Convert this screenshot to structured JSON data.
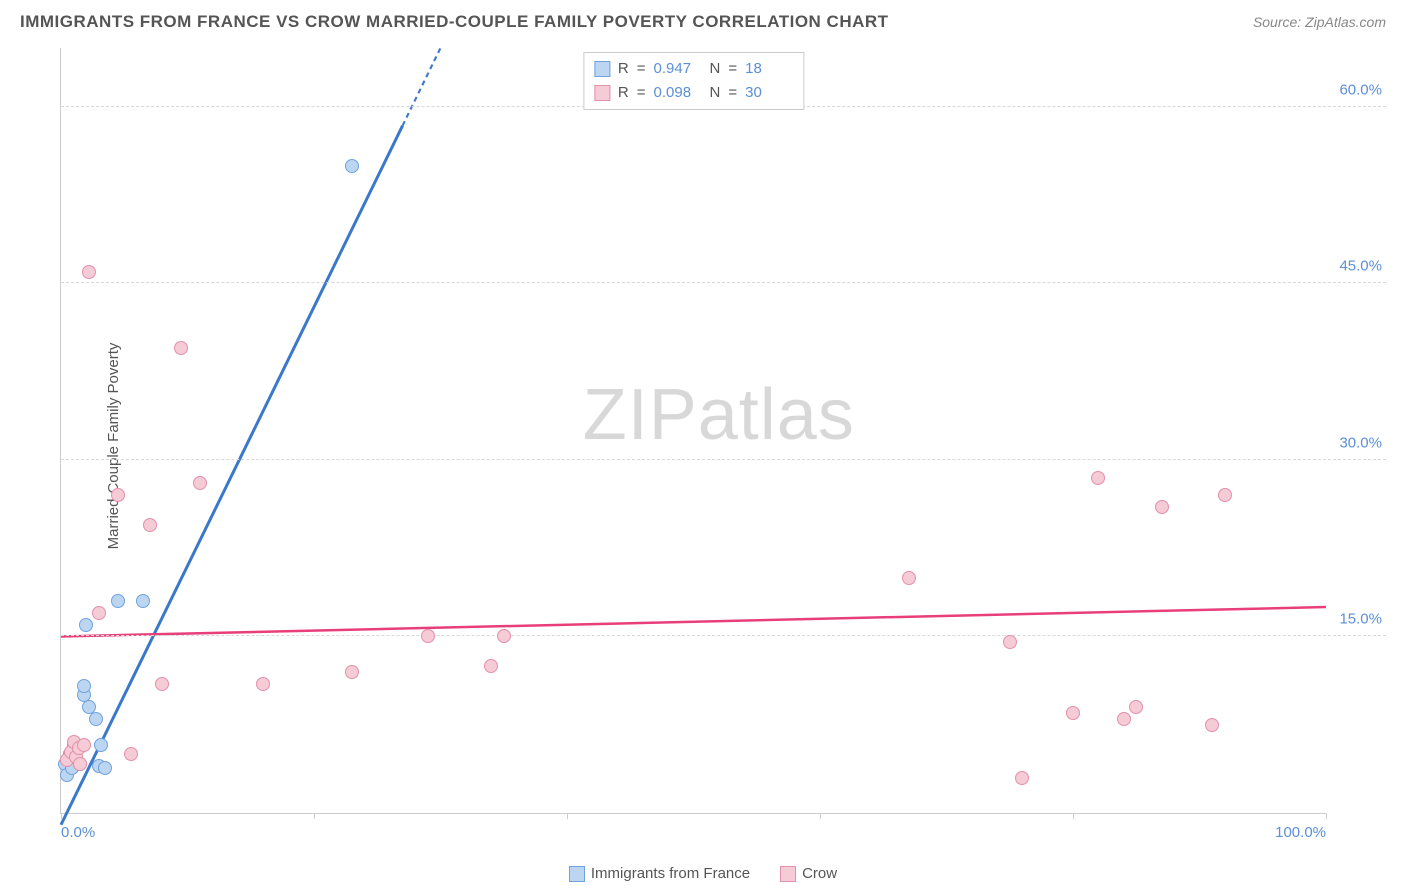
{
  "header": {
    "title": "IMMIGRANTS FROM FRANCE VS CROW MARRIED-COUPLE FAMILY POVERTY CORRELATION CHART",
    "source_prefix": "Source: ",
    "source": "ZipAtlas.com"
  },
  "watermark": {
    "bold": "ZIP",
    "light": "atlas"
  },
  "chart": {
    "type": "scatter",
    "ylabel": "Married-Couple Family Poverty",
    "xlim": [
      0,
      100
    ],
    "ylim": [
      0,
      65
    ],
    "xticks": [
      0,
      20,
      40,
      60,
      80,
      100
    ],
    "xtick_labels": {
      "0": "0.0%",
      "100": "100.0%"
    },
    "yticks": [
      15,
      30,
      45,
      60
    ],
    "ytick_labels": {
      "15": "15.0%",
      "30": "30.0%",
      "45": "45.0%",
      "60": "60.0%"
    },
    "grid_color": "#d8d8d8",
    "axis_color": "#cccccc",
    "tick_label_color": "#5b8fd6",
    "background_color": "#ffffff",
    "marker_radius": 7,
    "series": [
      {
        "name": "Immigrants from France",
        "fill": "#bcd5f0",
        "stroke": "#6fa3df",
        "line_color": "#3a78c9",
        "line_width": 3,
        "regression": {
          "x1": 0,
          "y1": -1,
          "x2": 30,
          "y2": 65,
          "dash_after_x": 27
        },
        "R_label": "R",
        "R": "0.947",
        "N_label": "N",
        "N": "18",
        "points": [
          [
            0.3,
            4.2
          ],
          [
            0.5,
            3.2
          ],
          [
            0.7,
            5.0
          ],
          [
            0.9,
            3.8
          ],
          [
            1.0,
            4.8
          ],
          [
            1.0,
            5.8
          ],
          [
            1.5,
            4.2
          ],
          [
            1.8,
            10.0
          ],
          [
            1.8,
            10.8
          ],
          [
            2.0,
            16.0
          ],
          [
            2.2,
            9.0
          ],
          [
            2.8,
            8.0
          ],
          [
            3.0,
            4.0
          ],
          [
            3.2,
            5.8
          ],
          [
            3.5,
            3.8
          ],
          [
            4.5,
            18.0
          ],
          [
            6.5,
            18.0
          ],
          [
            23.0,
            55.0
          ]
        ]
      },
      {
        "name": "Crow",
        "fill": "#f5cbd6",
        "stroke": "#e48fab",
        "line_color": "#e83e7a",
        "line_width": 2.5,
        "regression": {
          "x1": 0,
          "y1": 15.0,
          "x2": 100,
          "y2": 17.5
        },
        "R_label": "R",
        "R": "0.098",
        "N_label": "N",
        "N": "30",
        "points": [
          [
            0.5,
            4.5
          ],
          [
            0.8,
            5.2
          ],
          [
            1.0,
            6.0
          ],
          [
            1.2,
            4.8
          ],
          [
            1.4,
            5.5
          ],
          [
            1.5,
            4.2
          ],
          [
            1.8,
            5.8
          ],
          [
            2.2,
            46.0
          ],
          [
            3.0,
            17.0
          ],
          [
            4.5,
            27.0
          ],
          [
            5.5,
            5.0
          ],
          [
            7.0,
            24.5
          ],
          [
            8.0,
            11.0
          ],
          [
            9.5,
            39.5
          ],
          [
            11.0,
            28.0
          ],
          [
            16.0,
            11.0
          ],
          [
            23.0,
            12.0
          ],
          [
            29.0,
            15.0
          ],
          [
            34.0,
            12.5
          ],
          [
            35.0,
            15.0
          ],
          [
            67.0,
            20.0
          ],
          [
            75.0,
            14.5
          ],
          [
            76.0,
            3.0
          ],
          [
            80.0,
            8.5
          ],
          [
            82.0,
            28.5
          ],
          [
            84.0,
            8.0
          ],
          [
            85.0,
            9.0
          ],
          [
            87.0,
            26.0
          ],
          [
            91.0,
            7.5
          ],
          [
            92.0,
            27.0
          ]
        ]
      }
    ]
  },
  "bottom_legend": [
    {
      "swatch_fill": "#bcd5f0",
      "swatch_stroke": "#6fa3df",
      "label": "Immigrants from France"
    },
    {
      "swatch_fill": "#f5cbd6",
      "swatch_stroke": "#e48fab",
      "label": "Crow"
    }
  ]
}
